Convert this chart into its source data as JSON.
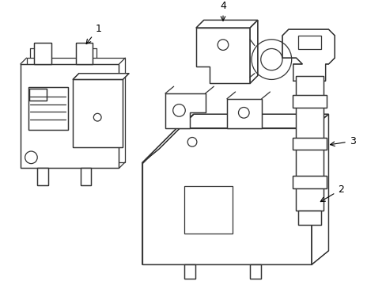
{
  "background_color": "#ffffff",
  "line_color": "#333333",
  "line_width": 0.9,
  "fig_width": 4.89,
  "fig_height": 3.6,
  "dpi": 100
}
